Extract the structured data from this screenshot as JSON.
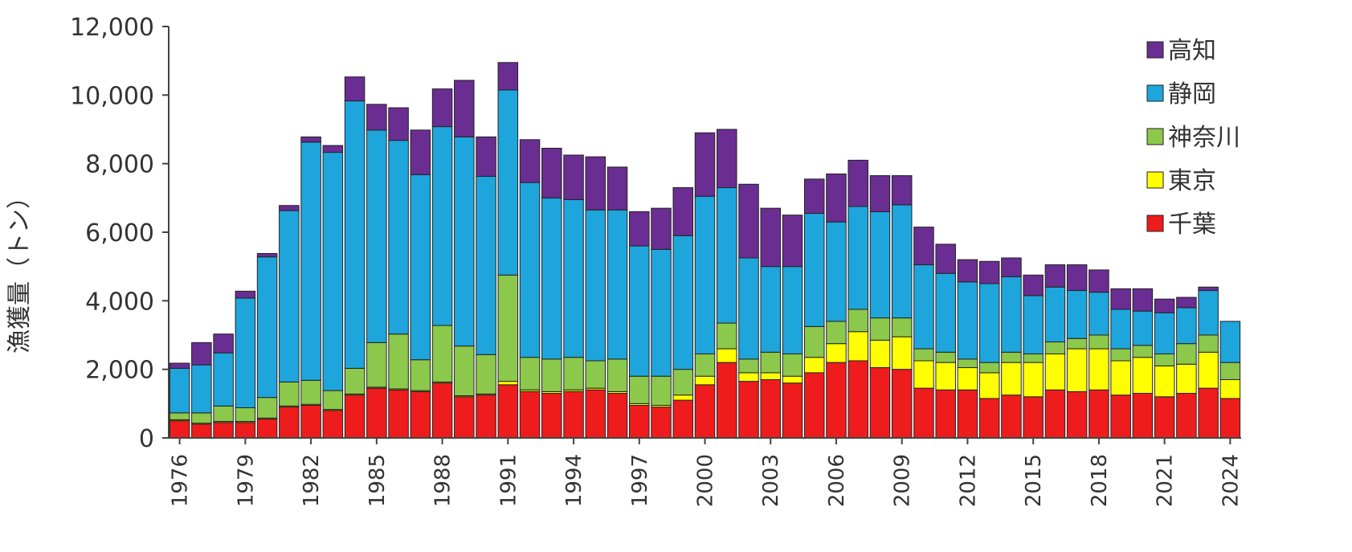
{
  "chart_data": {
    "type": "bar",
    "stacked": true,
    "title": "",
    "xlabel": "",
    "ylabel": "漁獲量（トン）",
    "ylim": [
      0,
      12000
    ],
    "yticks": [
      "0",
      "2,000",
      "4,000",
      "6,000",
      "8,000",
      "10,000",
      "12,000"
    ],
    "ytick_values": [
      0,
      2000,
      4000,
      6000,
      8000,
      10000,
      12000
    ],
    "xticks": [
      "1976",
      "1979",
      "1982",
      "1985",
      "1988",
      "1991",
      "1994",
      "1997",
      "2000",
      "2003",
      "2006",
      "2009",
      "2012",
      "2015",
      "2018",
      "2021",
      "2024"
    ],
    "grid": false,
    "legend_position": "right",
    "categories": [
      "1976",
      "1977",
      "1978",
      "1979",
      "1980",
      "1981",
      "1982",
      "1983",
      "1984",
      "1985",
      "1986",
      "1987",
      "1988",
      "1989",
      "1990",
      "1991",
      "1992",
      "1993",
      "1994",
      "1995",
      "1996",
      "1997",
      "1998",
      "1999",
      "2000",
      "2001",
      "2002",
      "2003",
      "2004",
      "2005",
      "2006",
      "2007",
      "2008",
      "2009",
      "2010",
      "2011",
      "2012",
      "2013",
      "2014",
      "2015",
      "2016",
      "2017",
      "2018",
      "2019",
      "2020",
      "2021",
      "2022",
      "2023",
      "2024"
    ],
    "series": [
      {
        "name": "千葉",
        "color": "#ee1c1c",
        "values": [
          500,
          400,
          450,
          450,
          550,
          900,
          950,
          800,
          1250,
          1450,
          1400,
          1350,
          1600,
          1200,
          1250,
          1550,
          1350,
          1300,
          1350,
          1400,
          1300,
          950,
          900,
          1100,
          1550,
          2200,
          1650,
          1700,
          1600,
          1900,
          2200,
          2250,
          2050,
          2000,
          1450,
          1400,
          1400,
          1150,
          1250,
          1200,
          1400,
          1350,
          1400,
          1250,
          1300,
          1200,
          1300,
          1450,
          1150
        ]
      },
      {
        "name": "東京",
        "color": "#ffff00",
        "values": [
          30,
          30,
          30,
          30,
          30,
          30,
          30,
          30,
          30,
          30,
          30,
          30,
          30,
          30,
          30,
          100,
          50,
          50,
          50,
          50,
          50,
          50,
          50,
          150,
          250,
          400,
          250,
          200,
          200,
          450,
          550,
          850,
          800,
          950,
          800,
          800,
          650,
          750,
          950,
          1000,
          1050,
          1250,
          1200,
          1000,
          1050,
          900,
          850,
          1050,
          550
        ]
      },
      {
        "name": "神奈川",
        "color": "#8cc84b",
        "values": [
          200,
          300,
          450,
          400,
          600,
          700,
          700,
          550,
          750,
          1300,
          1600,
          900,
          1650,
          1450,
          1150,
          3100,
          950,
          950,
          950,
          800,
          950,
          800,
          850,
          750,
          650,
          750,
          400,
          600,
          650,
          900,
          650,
          650,
          650,
          550,
          350,
          300,
          250,
          300,
          300,
          250,
          350,
          300,
          400,
          350,
          350,
          350,
          600,
          500,
          500
        ]
      },
      {
        "name": "静岡",
        "color": "#1ea5dc",
        "values": [
          1300,
          1400,
          1550,
          3200,
          4100,
          5000,
          6950,
          6950,
          7800,
          6200,
          5650,
          5400,
          5800,
          6100,
          5200,
          5400,
          5100,
          4700,
          4600,
          4400,
          4350,
          3800,
          3700,
          3900,
          4600,
          3950,
          2950,
          2500,
          2550,
          3300,
          2900,
          3000,
          3100,
          3300,
          2450,
          2300,
          2250,
          2300,
          2200,
          1700,
          1600,
          1400,
          1250,
          1150,
          1000,
          1200,
          1050,
          1300,
          1200
        ]
      },
      {
        "name": "高知",
        "color": "#6a2d91",
        "values": [
          150,
          650,
          550,
          200,
          100,
          150,
          150,
          200,
          700,
          750,
          950,
          1300,
          1100,
          1650,
          1150,
          800,
          1250,
          1450,
          1300,
          1550,
          1250,
          1000,
          1200,
          1400,
          1850,
          1700,
          2150,
          1700,
          1500,
          1000,
          1400,
          1350,
          1050,
          850,
          1100,
          850,
          650,
          650,
          550,
          600,
          650,
          750,
          650,
          600,
          650,
          400,
          300,
          100,
          0
        ]
      }
    ]
  }
}
